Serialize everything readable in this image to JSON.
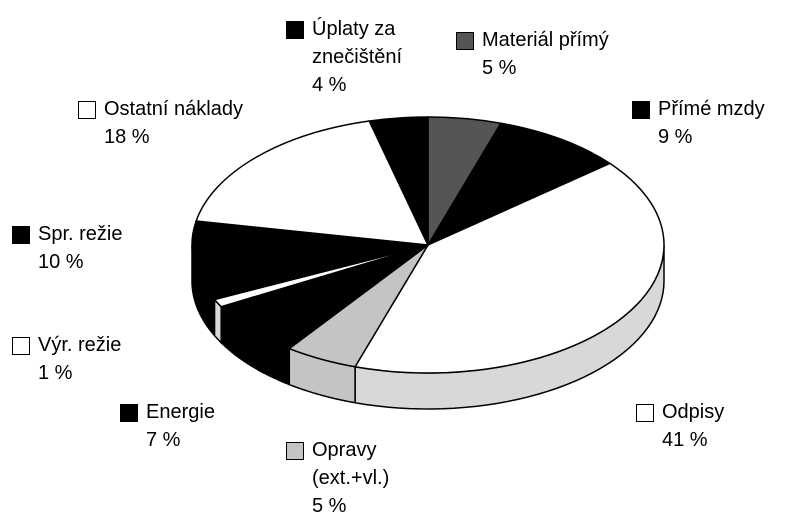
{
  "chart_data": {
    "type": "pie3d",
    "categories": [
      "Materiál přímý",
      "Přímé mzdy",
      "Odpisy",
      "Opravy\n(ext.+vl.)",
      "Energie",
      "Výr. režie",
      "Spr. režie",
      "Ostatní náklady",
      "Úplaty za\nznečištění"
    ],
    "values": [
      5,
      9,
      41,
      5,
      7,
      1,
      10,
      18,
      4
    ],
    "value_labels": [
      "5 %",
      "9 %",
      "41 %",
      "5 %",
      "7 %",
      "1 %",
      "10 %",
      "18 %",
      "4 %"
    ],
    "colors": [
      "#555555",
      "#000000",
      "#ffffff",
      "#c4c4c4",
      "#000000",
      "#ffffff",
      "#000000",
      "#ffffff",
      "#000000"
    ]
  }
}
